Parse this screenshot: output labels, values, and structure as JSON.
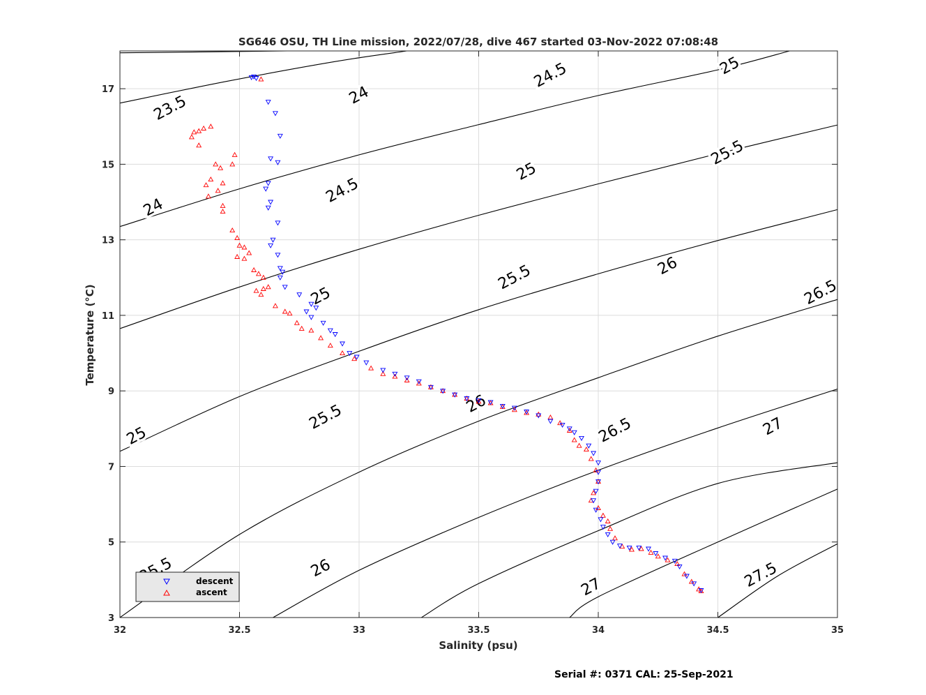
{
  "chart_data": {
    "type": "scatter",
    "title": "SG646 OSU, TH Line mission, 2022/07/28, dive 467 started 03-Nov-2022 07:08:48",
    "xlabel": "Salinity (psu)",
    "ylabel": "Temperature (°C)",
    "xlim": [
      32,
      35
    ],
    "ylim": [
      3,
      18
    ],
    "xticks": [
      "32",
      "32.5",
      "33",
      "33.5",
      "34",
      "34.5",
      "35"
    ],
    "yticks": [
      "3",
      "5",
      "7",
      "9",
      "11",
      "13",
      "15",
      "17"
    ],
    "grid": true,
    "legend_position": "bottom-left",
    "footer": "Serial #: 0371  CAL: 25-Sep-2021",
    "colors": {
      "descent": "#0000ff",
      "ascent": "#ff0000",
      "contour": "#000000",
      "grid": "#dcdcdc"
    },
    "contour_labels": [
      {
        "text": "23.5",
        "s": 32.21,
        "t": 16.48
      },
      {
        "text": "24",
        "s": 33.0,
        "t": 16.82
      },
      {
        "text": "24.5",
        "s": 33.8,
        "t": 17.35
      },
      {
        "text": "25",
        "s": 34.55,
        "t": 17.6
      },
      {
        "text": "24",
        "s": 32.14,
        "t": 13.85
      },
      {
        "text": "24.5",
        "s": 32.93,
        "t": 14.3
      },
      {
        "text": "25",
        "s": 33.7,
        "t": 14.8
      },
      {
        "text": "25.5",
        "s": 34.54,
        "t": 15.3
      },
      {
        "text": "25",
        "s": 32.84,
        "t": 11.5
      },
      {
        "text": "25.5",
        "s": 33.65,
        "t": 12.0
      },
      {
        "text": "26",
        "s": 34.29,
        "t": 12.3
      },
      {
        "text": "26.5",
        "s": 34.93,
        "t": 11.6
      },
      {
        "text": "25",
        "s": 32.07,
        "t": 7.8
      },
      {
        "text": "25.5",
        "s": 32.86,
        "t": 8.3
      },
      {
        "text": "26",
        "s": 33.49,
        "t": 8.65
      },
      {
        "text": "26.5",
        "s": 34.07,
        "t": 7.95
      },
      {
        "text": "27",
        "s": 34.73,
        "t": 8.05
      },
      {
        "text": "25.5",
        "s": 32.15,
        "t": 4.25
      },
      {
        "text": "26",
        "s": 32.84,
        "t": 4.3
      },
      {
        "text": "27",
        "s": 33.97,
        "t": 3.8
      },
      {
        "text": "27.5",
        "s": 34.68,
        "t": 4.12
      }
    ],
    "contour_lines": [
      {
        "points": [
          [
            32.0,
            17.95
          ],
          [
            32.7,
            18.0
          ]
        ]
      },
      {
        "points": [
          [
            32.0,
            16.62
          ],
          [
            32.45,
            17.2
          ],
          [
            32.9,
            17.72
          ],
          [
            33.2,
            18.0
          ]
        ]
      },
      {
        "points": [
          [
            32.0,
            13.35
          ],
          [
            32.5,
            14.35
          ],
          [
            33.0,
            15.25
          ],
          [
            33.5,
            16.05
          ],
          [
            34.0,
            16.82
          ],
          [
            34.5,
            17.5
          ],
          [
            34.8,
            18.0
          ]
        ]
      },
      {
        "points": [
          [
            32.0,
            10.65
          ],
          [
            32.5,
            11.75
          ],
          [
            33.0,
            12.75
          ],
          [
            33.5,
            13.65
          ],
          [
            34.0,
            14.48
          ],
          [
            34.5,
            15.28
          ],
          [
            35.0,
            16.04
          ]
        ]
      },
      {
        "points": [
          [
            32.0,
            7.4
          ],
          [
            32.5,
            8.85
          ],
          [
            33.0,
            10.05
          ],
          [
            33.5,
            11.15
          ],
          [
            34.0,
            12.1
          ],
          [
            34.5,
            12.98
          ],
          [
            35.0,
            13.8
          ]
        ]
      },
      {
        "points": [
          [
            32.0,
            3.0
          ],
          [
            32.5,
            5.2
          ],
          [
            33.0,
            6.85
          ],
          [
            33.5,
            8.2
          ],
          [
            34.0,
            9.35
          ],
          [
            34.5,
            10.45
          ],
          [
            35.0,
            11.42
          ]
        ]
      },
      {
        "points": [
          [
            32.64,
            3.0
          ],
          [
            33.0,
            4.25
          ],
          [
            33.5,
            5.65
          ],
          [
            34.0,
            6.9
          ],
          [
            34.5,
            8.02
          ],
          [
            35.0,
            9.05
          ]
        ]
      },
      {
        "points": [
          [
            33.26,
            3.0
          ],
          [
            33.5,
            3.9
          ],
          [
            34.0,
            5.3
          ],
          [
            34.5,
            6.55
          ],
          [
            35.0,
            7.1
          ]
        ]
      },
      {
        "points": [
          [
            33.88,
            3.0
          ],
          [
            34.0,
            3.55
          ],
          [
            34.5,
            5.0
          ],
          [
            35.0,
            6.4
          ]
        ]
      },
      {
        "points": [
          [
            34.5,
            3.0
          ],
          [
            34.75,
            4.1
          ],
          [
            35.0,
            4.95
          ]
        ]
      }
    ],
    "series": [
      {
        "name": "descent",
        "marker": "triangle-down",
        "points": [
          [
            32.55,
            17.3
          ],
          [
            32.56,
            17.32
          ],
          [
            32.57,
            17.28
          ],
          [
            32.62,
            16.65
          ],
          [
            32.65,
            16.35
          ],
          [
            32.67,
            15.75
          ],
          [
            32.66,
            15.05
          ],
          [
            32.63,
            15.15
          ],
          [
            32.62,
            14.5
          ],
          [
            32.61,
            14.35
          ],
          [
            32.63,
            14.0
          ],
          [
            32.62,
            13.85
          ],
          [
            32.66,
            13.45
          ],
          [
            32.64,
            13.0
          ],
          [
            32.63,
            12.85
          ],
          [
            32.66,
            12.6
          ],
          [
            32.67,
            12.25
          ],
          [
            32.68,
            12.15
          ],
          [
            32.67,
            12.0
          ],
          [
            32.69,
            11.75
          ],
          [
            32.75,
            11.55
          ],
          [
            32.78,
            11.1
          ],
          [
            32.8,
            11.3
          ],
          [
            32.82,
            11.2
          ],
          [
            32.8,
            10.95
          ],
          [
            32.85,
            10.8
          ],
          [
            32.88,
            10.6
          ],
          [
            32.9,
            10.5
          ],
          [
            32.93,
            10.25
          ],
          [
            32.96,
            10.0
          ],
          [
            32.99,
            9.9
          ],
          [
            33.03,
            9.75
          ],
          [
            33.1,
            9.55
          ],
          [
            33.15,
            9.45
          ],
          [
            33.2,
            9.35
          ],
          [
            33.25,
            9.25
          ],
          [
            33.3,
            9.1
          ],
          [
            33.35,
            9.0
          ],
          [
            33.4,
            8.9
          ],
          [
            33.45,
            8.8
          ],
          [
            33.5,
            8.75
          ],
          [
            33.55,
            8.7
          ],
          [
            33.6,
            8.6
          ],
          [
            33.65,
            8.55
          ],
          [
            33.7,
            8.45
          ],
          [
            33.75,
            8.35
          ],
          [
            33.8,
            8.2
          ],
          [
            33.85,
            8.1
          ],
          [
            33.88,
            8.0
          ],
          [
            33.9,
            7.9
          ],
          [
            33.93,
            7.75
          ],
          [
            33.96,
            7.55
          ],
          [
            33.98,
            7.35
          ],
          [
            34.0,
            7.1
          ],
          [
            34.0,
            6.85
          ],
          [
            34.0,
            6.6
          ],
          [
            33.99,
            6.35
          ],
          [
            33.98,
            6.1
          ],
          [
            33.99,
            5.85
          ],
          [
            34.01,
            5.6
          ],
          [
            34.02,
            5.4
          ],
          [
            34.04,
            5.2
          ],
          [
            34.06,
            5.0
          ],
          [
            34.09,
            4.9
          ],
          [
            34.13,
            4.85
          ],
          [
            34.17,
            4.85
          ],
          [
            34.21,
            4.82
          ],
          [
            34.24,
            4.7
          ],
          [
            34.28,
            4.58
          ],
          [
            34.32,
            4.5
          ],
          [
            34.34,
            4.35
          ],
          [
            34.37,
            4.1
          ],
          [
            34.4,
            3.9
          ],
          [
            34.43,
            3.72
          ]
        ]
      },
      {
        "name": "ascent",
        "marker": "triangle-up",
        "points": [
          [
            32.59,
            17.25
          ],
          [
            32.38,
            16.0
          ],
          [
            32.35,
            15.95
          ],
          [
            32.33,
            15.88
          ],
          [
            32.31,
            15.85
          ],
          [
            32.3,
            15.72
          ],
          [
            32.33,
            15.5
          ],
          [
            32.4,
            15.0
          ],
          [
            32.48,
            15.25
          ],
          [
            32.47,
            15.0
          ],
          [
            32.42,
            14.9
          ],
          [
            32.38,
            14.6
          ],
          [
            32.36,
            14.45
          ],
          [
            32.43,
            14.5
          ],
          [
            32.41,
            14.3
          ],
          [
            32.37,
            14.15
          ],
          [
            32.43,
            13.9
          ],
          [
            32.43,
            13.75
          ],
          [
            32.47,
            13.25
          ],
          [
            32.49,
            13.05
          ],
          [
            32.5,
            12.85
          ],
          [
            32.52,
            12.8
          ],
          [
            32.49,
            12.55
          ],
          [
            32.52,
            12.5
          ],
          [
            32.54,
            12.65
          ],
          [
            32.56,
            12.2
          ],
          [
            32.58,
            12.1
          ],
          [
            32.6,
            12.0
          ],
          [
            32.57,
            11.65
          ],
          [
            32.6,
            11.7
          ],
          [
            32.62,
            11.75
          ],
          [
            32.59,
            11.55
          ],
          [
            32.65,
            11.25
          ],
          [
            32.69,
            11.1
          ],
          [
            32.71,
            11.05
          ],
          [
            32.74,
            10.8
          ],
          [
            32.76,
            10.65
          ],
          [
            32.8,
            10.6
          ],
          [
            32.84,
            10.4
          ],
          [
            32.88,
            10.2
          ],
          [
            32.93,
            10.0
          ],
          [
            32.98,
            9.85
          ],
          [
            33.05,
            9.6
          ],
          [
            33.1,
            9.45
          ],
          [
            33.15,
            9.38
          ],
          [
            33.2,
            9.28
          ],
          [
            33.25,
            9.2
          ],
          [
            33.3,
            9.1
          ],
          [
            33.35,
            9.0
          ],
          [
            33.4,
            8.9
          ],
          [
            33.45,
            8.8
          ],
          [
            33.5,
            8.72
          ],
          [
            33.55,
            8.68
          ],
          [
            33.6,
            8.58
          ],
          [
            33.65,
            8.5
          ],
          [
            33.7,
            8.42
          ],
          [
            33.75,
            8.38
          ],
          [
            33.8,
            8.3
          ],
          [
            33.84,
            8.15
          ],
          [
            33.88,
            7.95
          ],
          [
            33.9,
            7.7
          ],
          [
            33.92,
            7.55
          ],
          [
            33.95,
            7.45
          ],
          [
            33.97,
            7.2
          ],
          [
            33.99,
            6.9
          ],
          [
            34.0,
            6.6
          ],
          [
            33.98,
            6.3
          ],
          [
            33.97,
            6.1
          ],
          [
            34.0,
            5.9
          ],
          [
            34.02,
            5.7
          ],
          [
            34.04,
            5.55
          ],
          [
            34.05,
            5.35
          ],
          [
            34.07,
            5.1
          ],
          [
            34.1,
            4.88
          ],
          [
            34.14,
            4.8
          ],
          [
            34.18,
            4.82
          ],
          [
            34.22,
            4.72
          ],
          [
            34.25,
            4.62
          ],
          [
            34.29,
            4.52
          ],
          [
            34.33,
            4.42
          ],
          [
            34.36,
            4.15
          ],
          [
            34.39,
            3.95
          ],
          [
            34.42,
            3.75
          ],
          [
            34.43,
            3.7
          ]
        ]
      }
    ]
  }
}
